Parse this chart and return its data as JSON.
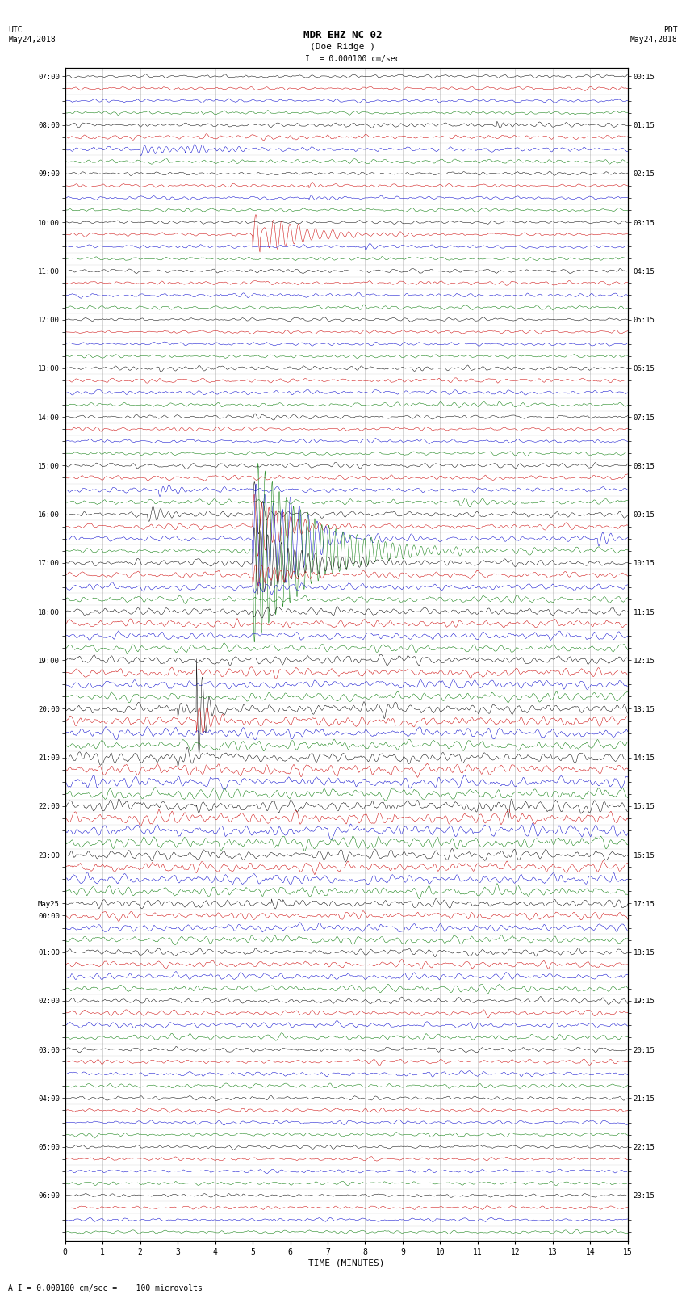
{
  "title_line1": "MDR EHZ NC 02",
  "title_line2": "(Doe Ridge )",
  "scale_text": "I = 0.000100 cm/sec",
  "bottom_label": "A I = 0.000100 cm/sec =    100 microvolts",
  "xlabel": "TIME (MINUTES)",
  "left_times_utc": [
    "07:00",
    "",
    "",
    "",
    "08:00",
    "",
    "",
    "",
    "09:00",
    "",
    "",
    "",
    "10:00",
    "",
    "",
    "",
    "11:00",
    "",
    "",
    "",
    "12:00",
    "",
    "",
    "",
    "13:00",
    "",
    "",
    "",
    "14:00",
    "",
    "",
    "",
    "15:00",
    "",
    "",
    "",
    "16:00",
    "",
    "",
    "",
    "17:00",
    "",
    "",
    "",
    "18:00",
    "",
    "",
    "",
    "19:00",
    "",
    "",
    "",
    "20:00",
    "",
    "",
    "",
    "21:00",
    "",
    "",
    "",
    "22:00",
    "",
    "",
    "",
    "23:00",
    "",
    "",
    "",
    "May25",
    "00:00",
    "",
    "",
    "01:00",
    "",
    "",
    "",
    "02:00",
    "",
    "",
    "",
    "03:00",
    "",
    "",
    "",
    "04:00",
    "",
    "",
    "",
    "05:00",
    "",
    "",
    "",
    "06:00",
    "",
    "",
    ""
  ],
  "right_times_pdt": [
    "00:15",
    "",
    "",
    "",
    "01:15",
    "",
    "",
    "",
    "02:15",
    "",
    "",
    "",
    "03:15",
    "",
    "",
    "",
    "04:15",
    "",
    "",
    "",
    "05:15",
    "",
    "",
    "",
    "06:15",
    "",
    "",
    "",
    "07:15",
    "",
    "",
    "",
    "08:15",
    "",
    "",
    "",
    "09:15",
    "",
    "",
    "",
    "10:15",
    "",
    "",
    "",
    "11:15",
    "",
    "",
    "",
    "12:15",
    "",
    "",
    "",
    "13:15",
    "",
    "",
    "",
    "14:15",
    "",
    "",
    "",
    "15:15",
    "",
    "",
    "",
    "16:15",
    "",
    "",
    "",
    "17:15",
    "",
    "",
    "",
    "18:15",
    "",
    "",
    "",
    "19:15",
    "",
    "",
    "",
    "20:15",
    "",
    "",
    "",
    "21:15",
    "",
    "",
    "",
    "22:15",
    "",
    "",
    "",
    "23:15",
    "",
    "",
    ""
  ],
  "n_rows": 96,
  "time_minutes": 15,
  "trace_color_cycle": [
    "#000000",
    "#cc0000",
    "#0000cc",
    "#007700"
  ],
  "bg_color": "#ffffff",
  "fig_width": 8.5,
  "fig_height": 16.13,
  "dpi": 100,
  "x_ticks": [
    0,
    1,
    2,
    3,
    4,
    5,
    6,
    7,
    8,
    9,
    10,
    11,
    12,
    13,
    14,
    15
  ],
  "grid_color": "#888888",
  "noise_seed": 42,
  "noise_amplitudes": [
    0.06,
    0.06,
    0.06,
    0.06,
    0.08,
    0.08,
    0.08,
    0.08,
    0.06,
    0.06,
    0.06,
    0.06,
    0.06,
    0.06,
    0.06,
    0.06,
    0.07,
    0.07,
    0.07,
    0.07,
    0.06,
    0.06,
    0.06,
    0.06,
    0.08,
    0.08,
    0.08,
    0.08,
    0.07,
    0.07,
    0.07,
    0.07,
    0.09,
    0.09,
    0.09,
    0.09,
    0.1,
    0.1,
    0.1,
    0.1,
    0.12,
    0.12,
    0.12,
    0.12,
    0.14,
    0.14,
    0.14,
    0.14,
    0.16,
    0.16,
    0.16,
    0.16,
    0.18,
    0.18,
    0.18,
    0.18,
    0.2,
    0.2,
    0.2,
    0.2,
    0.22,
    0.22,
    0.22,
    0.22,
    0.18,
    0.18,
    0.18,
    0.18,
    0.14,
    0.14,
    0.14,
    0.14,
    0.12,
    0.12,
    0.12,
    0.12,
    0.1,
    0.1,
    0.1,
    0.1,
    0.08,
    0.08,
    0.08,
    0.08,
    0.07,
    0.07,
    0.07,
    0.07,
    0.06,
    0.06,
    0.06,
    0.06,
    0.06,
    0.06,
    0.06,
    0.06
  ],
  "events": [
    {
      "row": 4,
      "t": 11.5,
      "amp": 0.35,
      "dur": 0.3
    },
    {
      "row": 6,
      "t": 2.0,
      "amp": 0.5,
      "dur": 0.8
    },
    {
      "row": 6,
      "t": 3.2,
      "amp": 0.4,
      "dur": 0.6
    },
    {
      "row": 6,
      "t": 4.0,
      "amp": 0.3,
      "dur": 0.5
    },
    {
      "row": 9,
      "t": 6.5,
      "amp": 0.25,
      "dur": 0.4
    },
    {
      "row": 10,
      "t": 6.5,
      "amp": 0.25,
      "dur": 0.5
    },
    {
      "row": 13,
      "t": 5.0,
      "amp": 1.8,
      "dur": 1.2
    },
    {
      "row": 13,
      "t": 5.2,
      "amp": 1.2,
      "dur": 0.3
    },
    {
      "row": 14,
      "t": 8.0,
      "amp": 0.3,
      "dur": 0.3
    },
    {
      "row": 19,
      "t": 7.8,
      "amp": 0.25,
      "dur": 0.3
    },
    {
      "row": 24,
      "t": 2.5,
      "amp": 0.25,
      "dur": 0.3
    },
    {
      "row": 28,
      "t": 5.0,
      "amp": 0.25,
      "dur": 0.4
    },
    {
      "row": 34,
      "t": 2.5,
      "amp": 0.4,
      "dur": 0.5
    },
    {
      "row": 35,
      "t": 10.5,
      "amp": 0.5,
      "dur": 0.5
    },
    {
      "row": 36,
      "t": 2.2,
      "amp": 0.6,
      "dur": 0.6
    },
    {
      "row": 36,
      "t": 5.0,
      "amp": 3.5,
      "dur": 0.2
    },
    {
      "row": 37,
      "t": 5.0,
      "amp": 2.8,
      "dur": 0.8
    },
    {
      "row": 38,
      "t": 5.0,
      "amp": 5.0,
      "dur": 1.0
    },
    {
      "row": 38,
      "t": 5.8,
      "amp": 2.0,
      "dur": 0.8
    },
    {
      "row": 38,
      "t": 14.2,
      "amp": 0.6,
      "dur": 0.4
    },
    {
      "row": 39,
      "t": 5.0,
      "amp": 8.0,
      "dur": 1.5
    },
    {
      "row": 40,
      "t": 5.0,
      "amp": 3.0,
      "dur": 1.2
    },
    {
      "row": 41,
      "t": 5.0,
      "amp": 1.0,
      "dur": 0.8
    },
    {
      "row": 42,
      "t": 5.0,
      "amp": 0.8,
      "dur": 0.6
    },
    {
      "row": 44,
      "t": 5.0,
      "amp": 0.6,
      "dur": 0.5
    },
    {
      "row": 52,
      "t": 3.0,
      "amp": 0.6,
      "dur": 0.4
    },
    {
      "row": 52,
      "t": 3.5,
      "amp": 5.5,
      "dur": 0.2
    },
    {
      "row": 53,
      "t": 3.5,
      "amp": 1.5,
      "dur": 0.5
    },
    {
      "row": 56,
      "t": 3.0,
      "amp": 0.5,
      "dur": 0.3
    },
    {
      "row": 57,
      "t": 3.5,
      "amp": 0.3,
      "dur": 0.3
    },
    {
      "row": 60,
      "t": 3.5,
      "amp": 0.4,
      "dur": 0.3
    },
    {
      "row": 60,
      "t": 11.8,
      "amp": 0.8,
      "dur": 0.4
    },
    {
      "row": 61,
      "t": 11.8,
      "amp": 0.5,
      "dur": 0.3
    },
    {
      "row": 64,
      "t": 11.8,
      "amp": 0.3,
      "dur": 0.3
    },
    {
      "row": 68,
      "t": 5.5,
      "amp": 0.4,
      "dur": 0.3
    },
    {
      "row": 68,
      "t": 5.8,
      "amp": 0.25,
      "dur": 0.3
    }
  ]
}
